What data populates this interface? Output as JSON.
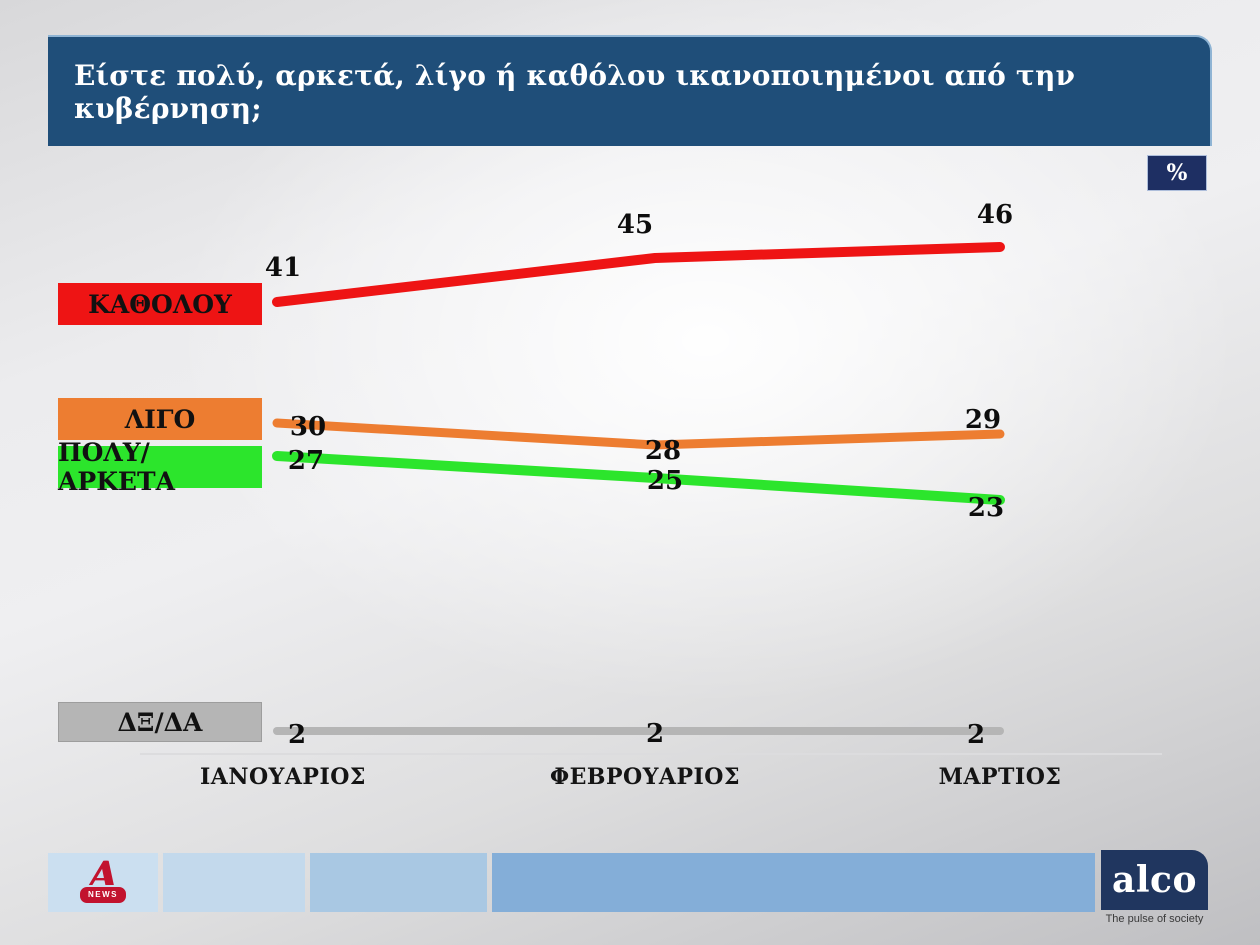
{
  "header": {
    "title": "Είστε πολύ, αρκετά, λίγο ή καθόλου ικανοποιημένοι από την κυβέρνηση;"
  },
  "unit_badge": "%",
  "chart_data": {
    "type": "line",
    "title": "Είστε πολύ, αρκετά, λίγο ή καθόλου ικανοποιημένοι από την κυβέρνηση;",
    "unit": "%",
    "categories": [
      "ΙΑΝΟΥΑΡΙΟΣ",
      "ΦΕΒΡΟΥΑΡΙΟΣ",
      "ΜΑΡΤΙΟΣ"
    ],
    "series": [
      {
        "name": "ΚΑΘΟΛΟΥ",
        "values": [
          41,
          45,
          46
        ],
        "color": "#ee1414"
      },
      {
        "name": "ΛΙΓΟ",
        "values": [
          30,
          28,
          29
        ],
        "color": "#ed7d31"
      },
      {
        "name": "ΠΟΛΥ/ΑΡΚΕΤΑ",
        "values": [
          27,
          25,
          23
        ],
        "color": "#2ce52c"
      },
      {
        "name": "ΔΞ/ΔΑ",
        "values": [
          2,
          2,
          2
        ],
        "color": "#b5b5b5"
      }
    ],
    "legend_position": "left",
    "grid": false,
    "data_labels": true
  },
  "footer": {
    "alpha_news_label": "NEWS",
    "alco_text": "alco",
    "alco_tagline": "The pulse of society"
  }
}
